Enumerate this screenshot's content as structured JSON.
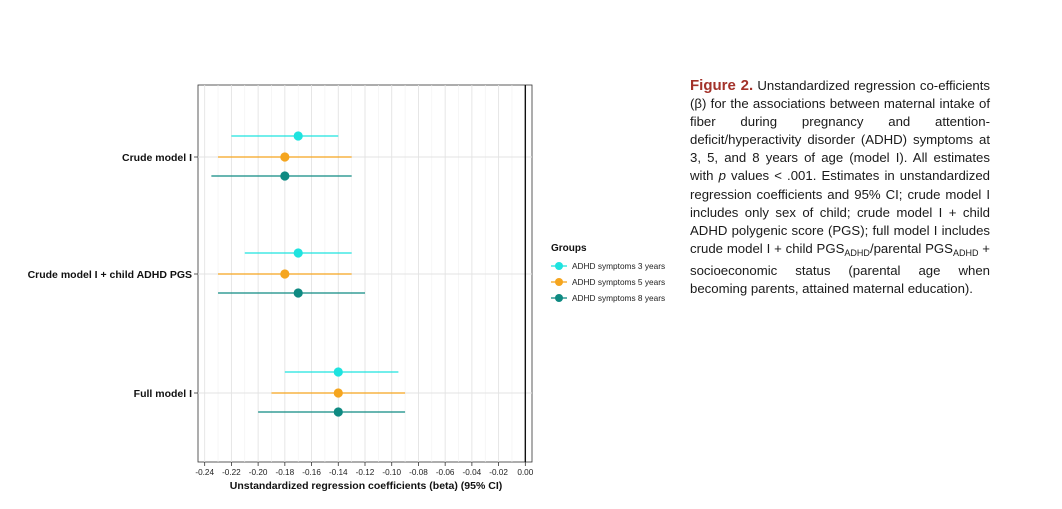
{
  "chart_data": {
    "type": "scatter",
    "subtype": "forest-plot",
    "xlabel": "Unstandardized regression coefficients (beta) (95% CI)",
    "xlim": [
      -0.245,
      0.005
    ],
    "x_ticks": [
      "-0.24",
      "-0.22",
      "-0.20",
      "-0.18",
      "-0.16",
      "-0.14",
      "-0.12",
      "-0.10",
      "-0.08",
      "-0.06",
      "-0.04",
      "-0.02",
      "0.00"
    ],
    "x_tick_values": [
      -0.24,
      -0.22,
      -0.2,
      -0.18,
      -0.16,
      -0.14,
      -0.12,
      -0.1,
      -0.08,
      -0.06,
      -0.04,
      -0.02,
      0.0
    ],
    "reference_line": 0,
    "grid": true,
    "legend_position": "right",
    "legend_title": "Groups",
    "categories": [
      "Crude model I",
      "Crude model I + child ADHD PGS",
      "Full model I"
    ],
    "series": [
      {
        "name": "ADHD symptoms 3 years",
        "color": "#1ee3df",
        "estimates": [
          -0.17,
          -0.17,
          -0.14
        ],
        "ci_low": [
          -0.22,
          -0.21,
          -0.18
        ],
        "ci_high": [
          -0.14,
          -0.13,
          -0.095
        ]
      },
      {
        "name": "ADHD symptoms 5 years",
        "color": "#f5a51e",
        "estimates": [
          -0.18,
          -0.18,
          -0.14
        ],
        "ci_low": [
          -0.23,
          -0.23,
          -0.19
        ],
        "ci_high": [
          -0.13,
          -0.13,
          -0.09
        ]
      },
      {
        "name": "ADHD symptoms 8 years",
        "color": "#0f8a82",
        "estimates": [
          -0.18,
          -0.17,
          -0.14
        ],
        "ci_low": [
          -0.235,
          -0.23,
          -0.2
        ],
        "ci_high": [
          -0.13,
          -0.12,
          -0.09
        ]
      }
    ]
  },
  "caption": {
    "label": "Figure 2.",
    "p1": " Unstandardized regression co-efficients (β) for the associations between maternal intake of fiber during pregnancy and attention-deficit/hyperactivity disorder (ADHD) symptoms at 3, 5, and 8 years of age (model I). All estimates with ",
    "p_italic": "p",
    "p2": " values < .001. Estimates in unstandardized regression coefficients and 95% CI; crude model I includes only sex of child; crude model I + child ADHD polygenic score (PGS); full model I includes crude model I + child PGS",
    "sub1": "ADHD",
    "p3": "/parental PGS",
    "sub2": "ADHD",
    "p4": " + socioeconomic status (parental age when becoming parents, attained maternal education)."
  }
}
